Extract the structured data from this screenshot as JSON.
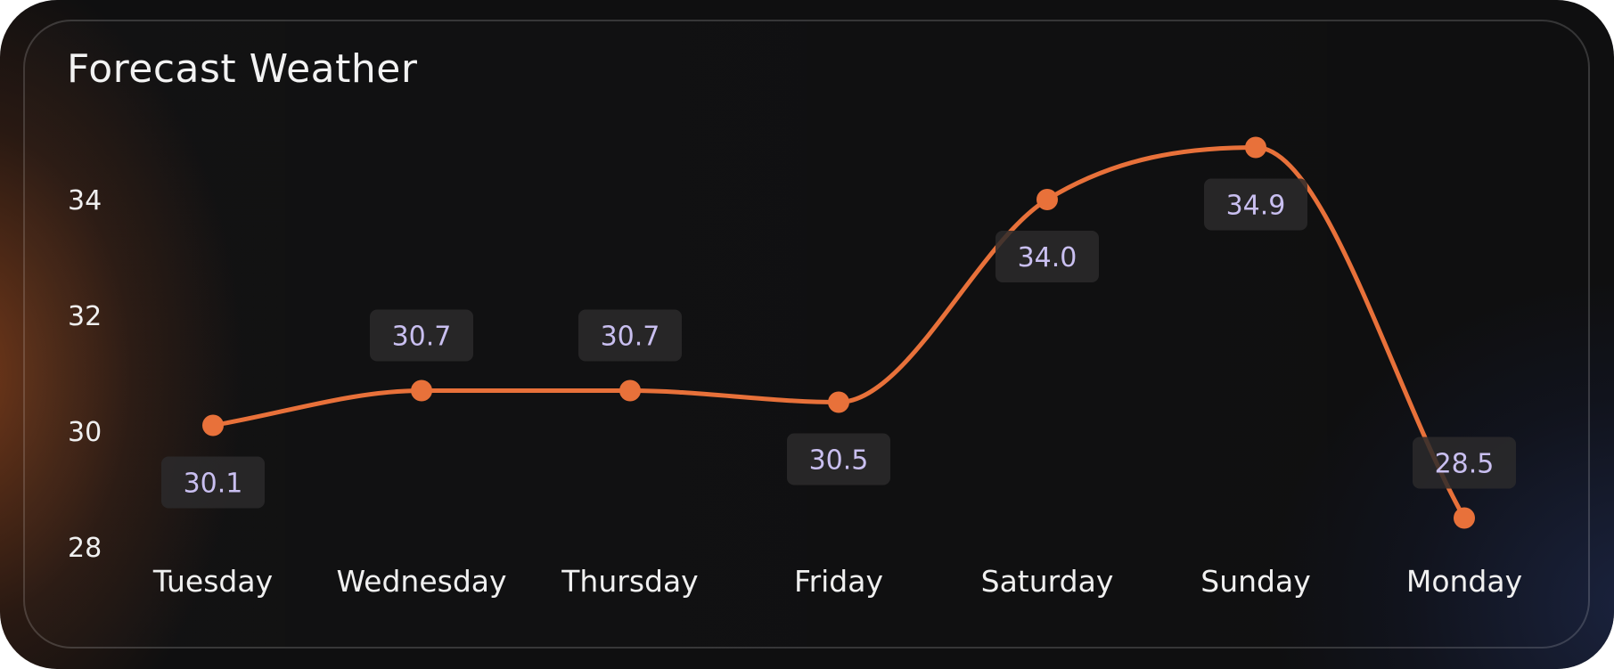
{
  "colors": {
    "line": "#e8713a",
    "point": "#e8713a",
    "label_bg": "#2b2a2c",
    "label_text": "#c9bff0",
    "text": "#f0f0f0"
  },
  "chart_data": {
    "type": "line",
    "title": "Forecast Weather",
    "categories": [
      "Tuesday",
      "Wednesday",
      "Thursday",
      "Friday",
      "Saturday",
      "Sunday",
      "Monday"
    ],
    "series": [
      {
        "values": [
          30.1,
          30.7,
          30.7,
          30.5,
          34.0,
          34.9,
          28.5
        ]
      }
    ],
    "value_labels": [
      "30.1",
      "30.7",
      "30.7",
      "30.5",
      "34.0",
      "34.9",
      "28.5"
    ],
    "label_placement": [
      "below",
      "above",
      "above",
      "below",
      "below",
      "below",
      "above"
    ],
    "yticks": [
      28,
      30,
      32,
      34
    ],
    "ylim": [
      28,
      36
    ],
    "xlabel": "",
    "ylabel": "",
    "grid": false,
    "smooth": true
  }
}
